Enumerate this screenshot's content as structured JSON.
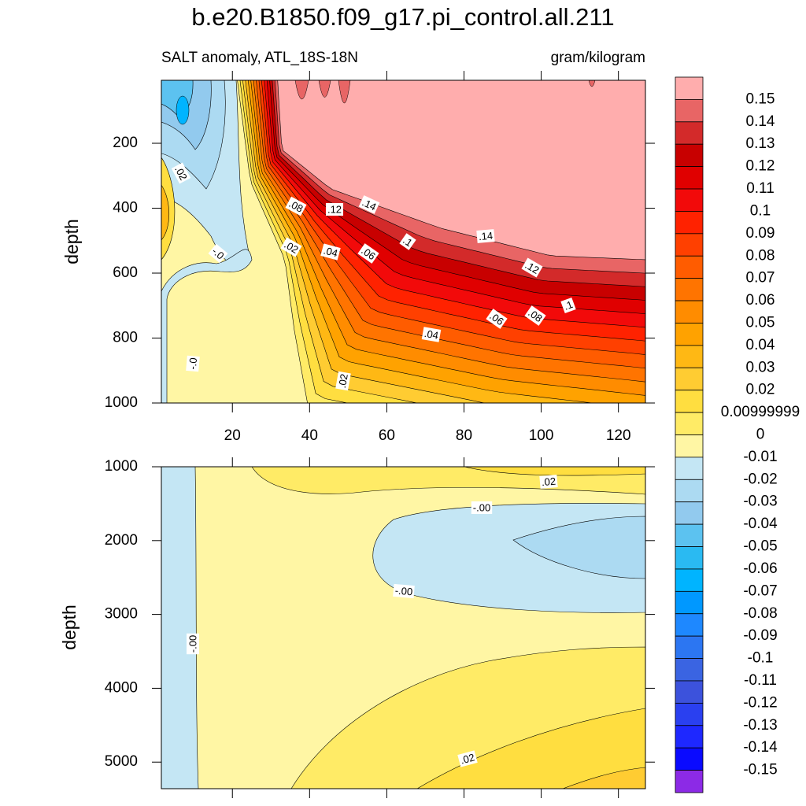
{
  "chart_data": [
    {
      "type": "contour",
      "title": "b.e20.B1850.f09_g17.pi_control.all.211",
      "subtitle": "SALT anomaly, ATL_18S-18N",
      "units": "gram/kilogram",
      "ylabel": "depth",
      "xlim": [
        1.6,
        127
      ],
      "xticks": [
        20,
        40,
        60,
        80,
        100,
        120
      ],
      "ylim": [
        1000,
        6
      ],
      "yticks": [
        200,
        400,
        600,
        800,
        1000
      ],
      "contour_labels": [
        ".02",
        ".08",
        ".12",
        ".14",
        "-.0",
        ".02",
        ".04",
        ".06",
        ".1",
        ".14",
        ".12",
        ".1",
        ".08",
        ".06",
        ".04",
        "-.0",
        ".02"
      ]
    },
    {
      "type": "contour",
      "ylabel": "depth",
      "xlim": [
        1.6,
        127
      ],
      "ylim": [
        5360,
        1000
      ],
      "yticks": [
        1000,
        2000,
        3000,
        4000,
        5000
      ],
      "contour_labels": [
        ".02",
        "-.00",
        "-.00",
        "-.00",
        ".02"
      ]
    }
  ],
  "colorbar": {
    "levels": [
      0.15,
      0.14,
      0.13,
      0.12,
      0.11,
      0.1,
      0.09,
      0.08,
      0.07,
      0.06,
      0.05,
      0.04,
      0.03,
      0.02,
      0.00999999,
      0,
      -0.01,
      -0.02,
      -0.03,
      -0.04,
      -0.05,
      -0.06,
      -0.07,
      -0.08,
      -0.09,
      -0.1,
      -0.11,
      -0.12,
      -0.13,
      -0.14,
      -0.15
    ],
    "colors": [
      "#ffadad",
      "#e86565",
      "#d32a2a",
      "#c80000",
      "#e00000",
      "#f20a0a",
      "#ff2200",
      "#ff4000",
      "#ff5c00",
      "#ff7400",
      "#ff8c00",
      "#ffa200",
      "#ffb814",
      "#ffcc32",
      "#ffde40",
      "#ffeb66",
      "#fff6a4",
      "#c4e6f4",
      "#acdaf2",
      "#92caee",
      "#5cc2f0",
      "#2abaf2",
      "#00b4ff",
      "#0098ff",
      "#1e88ff",
      "#2c76f2",
      "#3a64e2",
      "#3c52dc",
      "#2a40f0",
      "#1e28ff",
      "#0a0aff",
      "#8c2ae6"
    ]
  }
}
